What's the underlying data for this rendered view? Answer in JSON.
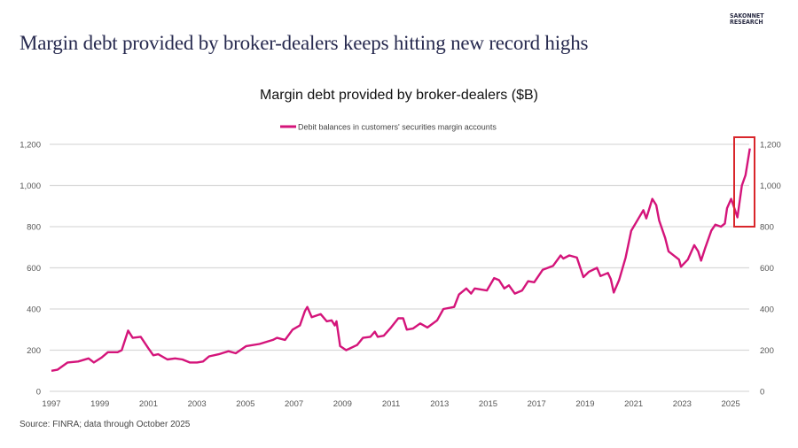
{
  "header": {
    "title": "Margin debt provided by broker-dealers keeps hitting new record highs",
    "logo_line1": "SAKONNET",
    "logo_line2": "RESEARCH"
  },
  "colors": {
    "series": "#d4147a",
    "highlight_box": "#d9262b",
    "grid": "#d9d9d9"
  },
  "chart_data": {
    "type": "line",
    "title": "Margin debt provided by broker-dealers ($B)",
    "xlabel": "",
    "ylabel": "",
    "legend_position": "top-center",
    "grid": true,
    "xlim": [
      1997,
      2025.9
    ],
    "ylim": [
      0,
      1200
    ],
    "x_ticks": [
      "1997",
      "1999",
      "2001",
      "2003",
      "2005",
      "2007",
      "2009",
      "2011",
      "2013",
      "2015",
      "2017",
      "2019",
      "2021",
      "2023",
      "2025"
    ],
    "y_ticks": [
      0,
      200,
      400,
      600,
      800,
      1000,
      1200
    ],
    "y_tick_labels": [
      "0",
      "200",
      "400",
      "600",
      "800",
      "1,000",
      "1,200"
    ],
    "annotation": "highlight box around 2025 record highs (800-1,200)",
    "series": [
      {
        "name": "Debit balances in customers' securities margin accounts",
        "x": [
          1997.0,
          1997.25,
          1997.67,
          1998.1,
          1998.53,
          1998.75,
          1999.08,
          1999.33,
          1999.73,
          1999.9,
          2000.16,
          2000.35,
          2000.68,
          2000.99,
          2001.2,
          2001.4,
          2001.78,
          2002.1,
          2002.4,
          2002.7,
          2003.0,
          2003.25,
          2003.5,
          2003.9,
          2004.3,
          2004.6,
          2005.03,
          2005.58,
          2006.13,
          2006.3,
          2006.63,
          2006.94,
          2007.24,
          2007.45,
          2007.55,
          2007.73,
          2008.1,
          2008.35,
          2008.55,
          2008.68,
          2008.75,
          2008.9,
          2009.15,
          2009.6,
          2009.84,
          2010.15,
          2010.33,
          2010.45,
          2010.7,
          2011.0,
          2011.3,
          2011.5,
          2011.65,
          2011.9,
          2012.2,
          2012.5,
          2012.9,
          2013.16,
          2013.6,
          2013.8,
          2014.1,
          2014.3,
          2014.45,
          2014.95,
          2015.25,
          2015.45,
          2015.67,
          2015.86,
          2016.1,
          2016.4,
          2016.65,
          2016.9,
          2017.25,
          2017.68,
          2017.99,
          2018.1,
          2018.35,
          2018.66,
          2018.93,
          2019.15,
          2019.49,
          2019.63,
          2019.94,
          2020.06,
          2020.18,
          2020.4,
          2020.67,
          2020.9,
          2021.1,
          2021.4,
          2021.52,
          2021.77,
          2021.93,
          2022.05,
          2022.3,
          2022.44,
          2022.87,
          2022.95,
          2023.23,
          2023.5,
          2023.66,
          2023.78,
          2023.96,
          2024.2,
          2024.37,
          2024.6,
          2024.76,
          2024.85,
          2025.02,
          2025.18,
          2025.28,
          2025.46,
          2025.61,
          2025.79
        ],
        "values": [
          100,
          105,
          140,
          145,
          160,
          140,
          165,
          190,
          190,
          200,
          295,
          260,
          265,
          210,
          175,
          180,
          155,
          160,
          155,
          140,
          140,
          145,
          170,
          180,
          195,
          185,
          220,
          230,
          250,
          260,
          250,
          300,
          320,
          390,
          410,
          360,
          375,
          340,
          345,
          320,
          340,
          220,
          200,
          225,
          260,
          265,
          290,
          265,
          270,
          310,
          355,
          355,
          300,
          305,
          330,
          310,
          345,
          400,
          410,
          470,
          500,
          475,
          500,
          490,
          550,
          540,
          500,
          515,
          475,
          490,
          535,
          530,
          590,
          610,
          660,
          645,
          660,
          650,
          555,
          580,
          600,
          560,
          575,
          545,
          480,
          540,
          650,
          780,
          820,
          880,
          840,
          935,
          905,
          830,
          745,
          680,
          640,
          605,
          640,
          710,
          680,
          635,
          700,
          780,
          810,
          800,
          815,
          890,
          935,
          880,
          845,
          1000,
          1050,
          1180
        ]
      }
    ],
    "source": "Source: FINRA; data through October 2025"
  }
}
